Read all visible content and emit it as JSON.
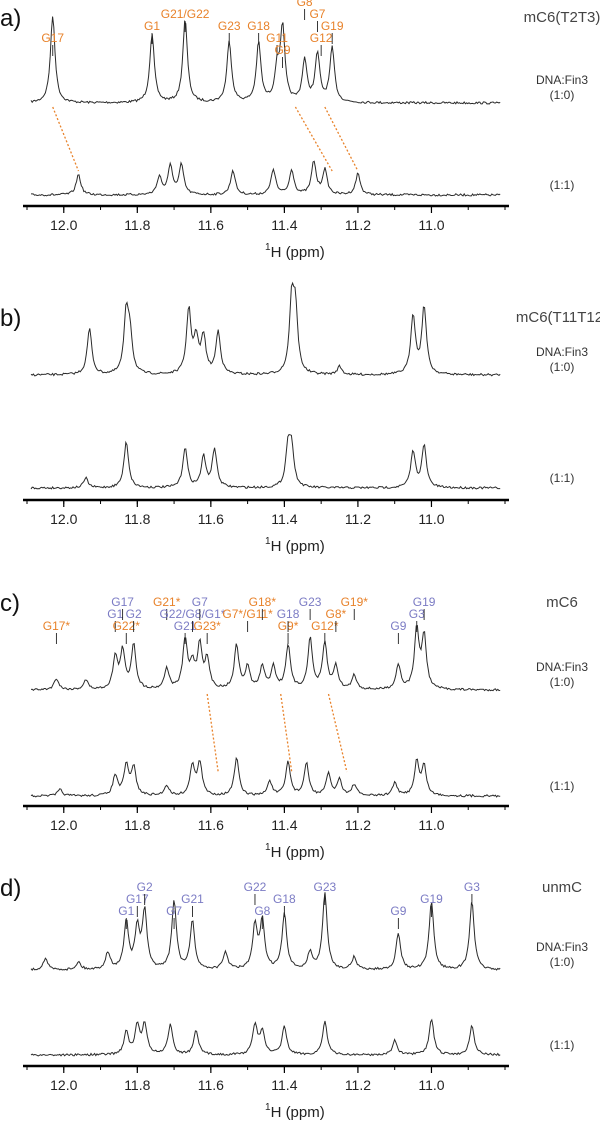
{
  "colors": {
    "assign_a": "#E8822A",
    "assign_b": "#7B7BC4",
    "trace": "#2a2a2a",
    "axis": "#000000",
    "text": "#333333"
  },
  "axis_title": {
    "sup": "1",
    "main": "H (ppm)"
  },
  "trace_labels": {
    "ratio_a": "DNA:Fin3",
    "ratio_a2": "(1:0)",
    "ratio_b": "(1:1)"
  },
  "chart_data": [
    {
      "type": "line",
      "panel": "a)",
      "title": "mC6(T2T3)",
      "xlim": [
        12.1,
        10.8
      ],
      "xticks": [
        "12.0",
        "11.8",
        "11.6",
        "11.4",
        "11.2",
        "11.0"
      ],
      "xlabel": "1H (ppm)",
      "series": [
        {
          "name": "DNA:Fin3 (1:0)",
          "peaks": [
            [
              12.03,
              1.0
            ],
            [
              11.76,
              0.78
            ],
            [
              11.67,
              0.95
            ],
            [
              11.55,
              0.7
            ],
            [
              11.47,
              0.68
            ],
            [
              11.42,
              0.35
            ],
            [
              11.405,
              0.85
            ],
            [
              11.345,
              0.48
            ],
            [
              11.31,
              0.55
            ],
            [
              11.27,
              0.62
            ]
          ]
        },
        {
          "name": "DNA:Fin3 (1:1)",
          "peaks": [
            [
              11.96,
              0.25
            ],
            [
              11.74,
              0.22
            ],
            [
              11.71,
              0.35
            ],
            [
              11.68,
              0.36
            ],
            [
              11.54,
              0.3
            ],
            [
              11.43,
              0.31
            ],
            [
              11.38,
              0.3
            ],
            [
              11.32,
              0.4
            ],
            [
              11.29,
              0.3
            ],
            [
              11.2,
              0.26
            ]
          ]
        }
      ],
      "assignments": [
        {
          "label": "G17",
          "color": "assign_a",
          "ppm": 12.03
        },
        {
          "label": "G1",
          "color": "assign_a",
          "ppm": 11.76
        },
        {
          "label": "G21/G22",
          "color": "assign_a",
          "ppm": 11.67
        },
        {
          "label": "G23",
          "color": "assign_a",
          "ppm": 11.55
        },
        {
          "label": "G18",
          "color": "assign_a",
          "ppm": 11.47
        },
        {
          "label": "G11",
          "color": "assign_a",
          "ppm": 11.42
        },
        {
          "label": "G9",
          "color": "assign_a",
          "ppm": 11.405
        },
        {
          "label": "G8",
          "color": "assign_a",
          "ppm": 11.345
        },
        {
          "label": "G7",
          "color": "assign_a",
          "ppm": 11.31
        },
        {
          "label": "G12",
          "color": "assign_a",
          "ppm": 11.3
        },
        {
          "label": "G19",
          "color": "assign_a",
          "ppm": 11.27
        }
      ],
      "shift_lines": [
        [
          12.03,
          11.96
        ],
        [
          11.37,
          11.27
        ],
        [
          11.29,
          11.2
        ]
      ]
    },
    {
      "type": "line",
      "panel": "b)",
      "title": "mC6(T11T12)",
      "xlim": [
        12.1,
        10.8
      ],
      "xticks": [
        "12.0",
        "11.8",
        "11.6",
        "11.4",
        "11.2",
        "11.0"
      ],
      "xlabel": "1H (ppm)",
      "series": [
        {
          "name": "DNA:Fin3 (1:0)",
          "peaks": [
            [
              11.93,
              0.56
            ],
            [
              11.83,
              0.72
            ],
            [
              11.82,
              0.45
            ],
            [
              11.66,
              0.78
            ],
            [
              11.64,
              0.4
            ],
            [
              11.62,
              0.45
            ],
            [
              11.58,
              0.52
            ],
            [
              11.38,
              0.85
            ],
            [
              11.37,
              0.72
            ],
            [
              11.25,
              0.1
            ],
            [
              11.05,
              0.72
            ],
            [
              11.02,
              0.82
            ]
          ]
        },
        {
          "name": "DNA:Fin3 (1:1)",
          "peaks": [
            [
              11.94,
              0.12
            ],
            [
              11.83,
              0.58
            ],
            [
              11.67,
              0.5
            ],
            [
              11.62,
              0.38
            ],
            [
              11.59,
              0.48
            ],
            [
              11.39,
              0.5
            ],
            [
              11.38,
              0.45
            ],
            [
              11.05,
              0.45
            ],
            [
              11.02,
              0.52
            ]
          ]
        }
      ],
      "assignments": [],
      "shift_lines": []
    },
    {
      "type": "line",
      "panel": "c)",
      "title": "mC6",
      "xlim": [
        12.1,
        10.8
      ],
      "xticks": [
        "12.0",
        "11.8",
        "11.6",
        "11.4",
        "11.2",
        "11.0"
      ],
      "xlabel": "1H (ppm)",
      "series": [
        {
          "name": "DNA:Fin3 (1:0)",
          "peaks": [
            [
              12.02,
              0.12
            ],
            [
              11.94,
              0.1
            ],
            [
              11.86,
              0.33
            ],
            [
              11.84,
              0.39
            ],
            [
              11.81,
              0.47
            ],
            [
              11.72,
              0.22
            ],
            [
              11.67,
              0.51
            ],
            [
              11.65,
              0.24
            ],
            [
              11.63,
              0.45
            ],
            [
              11.61,
              0.3
            ],
            [
              11.53,
              0.46
            ],
            [
              11.5,
              0.23
            ],
            [
              11.46,
              0.24
            ],
            [
              11.43,
              0.24
            ],
            [
              11.39,
              0.46
            ],
            [
              11.33,
              0.53
            ],
            [
              11.29,
              0.48
            ],
            [
              11.26,
              0.24
            ],
            [
              11.21,
              0.15
            ],
            [
              11.09,
              0.26
            ],
            [
              11.04,
              0.62
            ],
            [
              11.02,
              0.55
            ]
          ]
        },
        {
          "name": "DNA:Fin3 (1:1)",
          "peaks": [
            [
              12.01,
              0.08
            ],
            [
              11.86,
              0.25
            ],
            [
              11.83,
              0.37
            ],
            [
              11.81,
              0.35
            ],
            [
              11.72,
              0.13
            ],
            [
              11.65,
              0.38
            ],
            [
              11.63,
              0.4
            ],
            [
              11.53,
              0.47
            ],
            [
              11.44,
              0.18
            ],
            [
              11.39,
              0.42
            ],
            [
              11.34,
              0.4
            ],
            [
              11.28,
              0.27
            ],
            [
              11.25,
              0.2
            ],
            [
              11.21,
              0.14
            ],
            [
              11.1,
              0.16
            ],
            [
              11.04,
              0.42
            ],
            [
              11.02,
              0.36
            ]
          ]
        }
      ],
      "assignments": [
        {
          "label": "G17*",
          "color": "assign_a",
          "ppm": 12.02
        },
        {
          "label": "G1",
          "color": "assign_b",
          "ppm": 11.86
        },
        {
          "label": "G17",
          "color": "assign_b",
          "ppm": 11.84
        },
        {
          "label": "G22*",
          "color": "assign_a",
          "ppm": 11.83
        },
        {
          "label": "G2",
          "color": "assign_b",
          "ppm": 11.81
        },
        {
          "label": "G21*",
          "color": "assign_a",
          "ppm": 11.72
        },
        {
          "label": "G21",
          "color": "assign_b",
          "ppm": 11.67
        },
        {
          "label": "G22/G8/G1*",
          "color": "assign_b",
          "ppm": 11.65
        },
        {
          "label": "G7",
          "color": "assign_b",
          "ppm": 11.63
        },
        {
          "label": "G23*",
          "color": "assign_a",
          "ppm": 11.61
        },
        {
          "label": "G7*/G11*",
          "color": "assign_a",
          "ppm": 11.5
        },
        {
          "label": "G18*",
          "color": "assign_a",
          "ppm": 11.46
        },
        {
          "label": "G9*",
          "color": "assign_a",
          "ppm": 11.39
        },
        {
          "label": "G18",
          "color": "assign_b",
          "ppm": 11.39
        },
        {
          "label": "G23",
          "color": "assign_b",
          "ppm": 11.33
        },
        {
          "label": "G12*",
          "color": "assign_a",
          "ppm": 11.29
        },
        {
          "label": "G8*",
          "color": "assign_a",
          "ppm": 11.26
        },
        {
          "label": "G19*",
          "color": "assign_a",
          "ppm": 11.21
        },
        {
          "label": "G9",
          "color": "assign_b",
          "ppm": 11.09
        },
        {
          "label": "G3",
          "color": "assign_b",
          "ppm": 11.04
        },
        {
          "label": "G19",
          "color": "assign_b",
          "ppm": 11.02
        }
      ],
      "shift_lines": [
        [
          11.61,
          11.58
        ],
        [
          11.41,
          11.38
        ],
        [
          11.28,
          11.23
        ]
      ]
    },
    {
      "type": "line",
      "panel": "d)",
      "title": "unmC",
      "xlim": [
        12.1,
        10.8
      ],
      "xticks": [
        "12.0",
        "11.8",
        "11.6",
        "11.4",
        "11.2",
        "11.0"
      ],
      "xlabel": "1H (ppm)",
      "series": [
        {
          "name": "DNA:Fin3 (1:0)",
          "peaks": [
            [
              12.05,
              0.12
            ],
            [
              11.96,
              0.08
            ],
            [
              11.88,
              0.18
            ],
            [
              11.83,
              0.5
            ],
            [
              11.8,
              0.42
            ],
            [
              11.78,
              0.6
            ],
            [
              11.7,
              0.72
            ],
            [
              11.65,
              0.5
            ],
            [
              11.56,
              0.18
            ],
            [
              11.48,
              0.45
            ],
            [
              11.46,
              0.5
            ],
            [
              11.4,
              0.58
            ],
            [
              11.33,
              0.18
            ],
            [
              11.29,
              0.8
            ],
            [
              11.21,
              0.13
            ],
            [
              11.09,
              0.38
            ],
            [
              11.0,
              0.72
            ],
            [
              10.89,
              0.72
            ]
          ]
        },
        {
          "name": "DNA:Fin3 (1:1)",
          "peaks": [
            [
              11.83,
              0.28
            ],
            [
              11.8,
              0.35
            ],
            [
              11.78,
              0.38
            ],
            [
              11.71,
              0.38
            ],
            [
              11.64,
              0.3
            ],
            [
              11.48,
              0.37
            ],
            [
              11.46,
              0.3
            ],
            [
              11.4,
              0.35
            ],
            [
              11.29,
              0.42
            ],
            [
              11.1,
              0.18
            ],
            [
              11.0,
              0.45
            ],
            [
              10.89,
              0.37
            ]
          ]
        }
      ],
      "assignments": [
        {
          "label": "G1",
          "color": "assign_b",
          "ppm": 11.83
        },
        {
          "label": "G17",
          "color": "assign_b",
          "ppm": 11.8
        },
        {
          "label": "G2",
          "color": "assign_b",
          "ppm": 11.78
        },
        {
          "label": "G7",
          "color": "assign_b",
          "ppm": 11.7
        },
        {
          "label": "G21",
          "color": "assign_b",
          "ppm": 11.65
        },
        {
          "label": "G22",
          "color": "assign_b",
          "ppm": 11.48
        },
        {
          "label": "G8",
          "color": "assign_b",
          "ppm": 11.46
        },
        {
          "label": "G18",
          "color": "assign_b",
          "ppm": 11.4
        },
        {
          "label": "G23",
          "color": "assign_b",
          "ppm": 11.29
        },
        {
          "label": "G9",
          "color": "assign_b",
          "ppm": 11.09
        },
        {
          "label": "G19",
          "color": "assign_b",
          "ppm": 11.0
        },
        {
          "label": "G3",
          "color": "assign_b",
          "ppm": 10.89
        }
      ],
      "shift_lines": []
    }
  ]
}
